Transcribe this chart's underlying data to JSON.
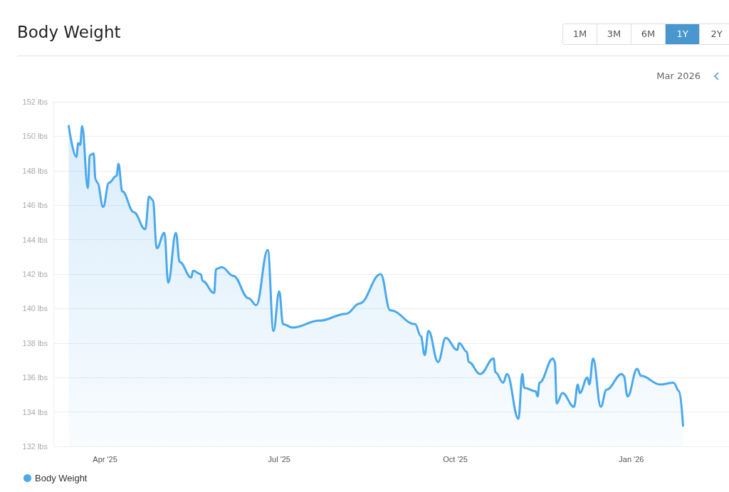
{
  "chart_data": {
    "type": "area",
    "title": "Body Weight",
    "annotations": [
      "1M",
      "3M",
      "6M",
      "1Y",
      "2Y",
      "Mar 2026"
    ],
    "x": [
      "2025-03-13",
      "2025-03-17",
      "2025-03-18",
      "2025-03-19",
      "2025-03-20",
      "2025-03-23",
      "2025-03-24",
      "2025-03-26",
      "2025-03-27",
      "2025-03-28",
      "2025-03-31",
      "2025-04-03",
      "2025-04-07",
      "2025-04-08",
      "2025-04-10",
      "2025-04-16",
      "2025-04-22",
      "2025-04-24",
      "2025-04-26",
      "2025-04-28",
      "2025-05-02",
      "2025-05-04",
      "2025-05-08",
      "2025-05-10",
      "2025-05-16",
      "2025-05-17",
      "2025-05-21",
      "2025-05-22",
      "2025-05-28",
      "2025-05-29",
      "2025-06-01",
      "2025-06-07",
      "2025-06-15",
      "2025-06-19",
      "2025-06-25",
      "2025-06-28",
      "2025-07-01",
      "2025-07-03",
      "2025-07-08",
      "2025-07-22",
      "2025-08-05",
      "2025-08-12",
      "2025-08-23",
      "2025-08-28",
      "2025-09-10",
      "2025-09-13",
      "2025-09-15",
      "2025-09-17",
      "2025-09-22",
      "2025-09-26",
      "2025-10-02",
      "2025-10-03",
      "2025-10-07",
      "2025-10-08",
      "2025-10-14",
      "2025-10-21",
      "2025-10-22",
      "2025-10-26",
      "2025-10-28",
      "2025-11-03",
      "2025-11-05",
      "2025-11-06",
      "2025-11-12",
      "2025-11-13",
      "2025-11-14",
      "2025-11-21",
      "2025-11-22",
      "2025-11-23",
      "2025-11-26",
      "2025-12-02",
      "2025-12-04",
      "2025-12-05",
      "2025-12-09",
      "2025-12-10",
      "2025-12-12",
      "2025-12-16",
      "2025-12-19",
      "2025-12-27",
      "2025-12-28",
      "2025-12-30",
      "2026-01-04",
      "2026-01-06",
      "2026-01-16",
      "2026-01-23",
      "2026-01-26",
      "2026-01-28"
    ],
    "series": [
      {
        "name": "Body Weight",
        "color": "#4aa8ec",
        "values": [
          150.6,
          148.8,
          149.6,
          149.5,
          150.6,
          147.0,
          148.9,
          149.0,
          147.5,
          147.3,
          145.9,
          147.3,
          147.7,
          148.4,
          146.8,
          145.6,
          144.6,
          146.5,
          146.3,
          143.5,
          144.4,
          141.5,
          144.4,
          142.7,
          141.8,
          142.2,
          142.0,
          141.6,
          140.9,
          142.3,
          142.4,
          141.9,
          140.6,
          140.2,
          143.4,
          138.7,
          141.0,
          139.1,
          138.9,
          139.3,
          139.7,
          140.3,
          142.0,
          139.9,
          139.1,
          138.4,
          137.3,
          138.7,
          136.9,
          138.3,
          137.6,
          138.0,
          137.5,
          136.9,
          136.2,
          137.1,
          136.3,
          135.7,
          136.2,
          133.6,
          136.2,
          135.4,
          135.2,
          134.9,
          135.7,
          137.1,
          136.9,
          134.5,
          135.1,
          134.3,
          135.6,
          135.1,
          136.0,
          135.6,
          137.1,
          134.3,
          135.3,
          136.2,
          136.1,
          134.9,
          136.5,
          136.1,
          135.6,
          135.7,
          135.2,
          133.2
        ]
      }
    ],
    "xlim": [
      "2025-03-05",
      "2026-02-21"
    ],
    "xticks": [
      {
        "value": "2025-04-01",
        "label": "Apr '25"
      },
      {
        "value": "2025-07-01",
        "label": "Jul '25"
      },
      {
        "value": "2025-10-01",
        "label": "Oct '25"
      },
      {
        "value": "2026-01-01",
        "label": "Jan '26"
      }
    ],
    "ylim": [
      132,
      152
    ],
    "yticks": [
      {
        "value": 132,
        "label": "132 lbs"
      },
      {
        "value": 134,
        "label": "134 lbs"
      },
      {
        "value": 136,
        "label": "136 lbs"
      },
      {
        "value": 138,
        "label": "138 lbs"
      },
      {
        "value": 140,
        "label": "140 lbs"
      },
      {
        "value": 142,
        "label": "142 lbs"
      },
      {
        "value": 144,
        "label": "144 lbs"
      },
      {
        "value": 146,
        "label": "146 lbs"
      },
      {
        "value": 148,
        "label": "148 lbs"
      },
      {
        "value": 150,
        "label": "150 lbs"
      },
      {
        "value": 152,
        "label": "152 lbs"
      }
    ],
    "grid": "y",
    "legend": "bottom left",
    "marker": "none",
    "line_style": "solid"
  }
}
